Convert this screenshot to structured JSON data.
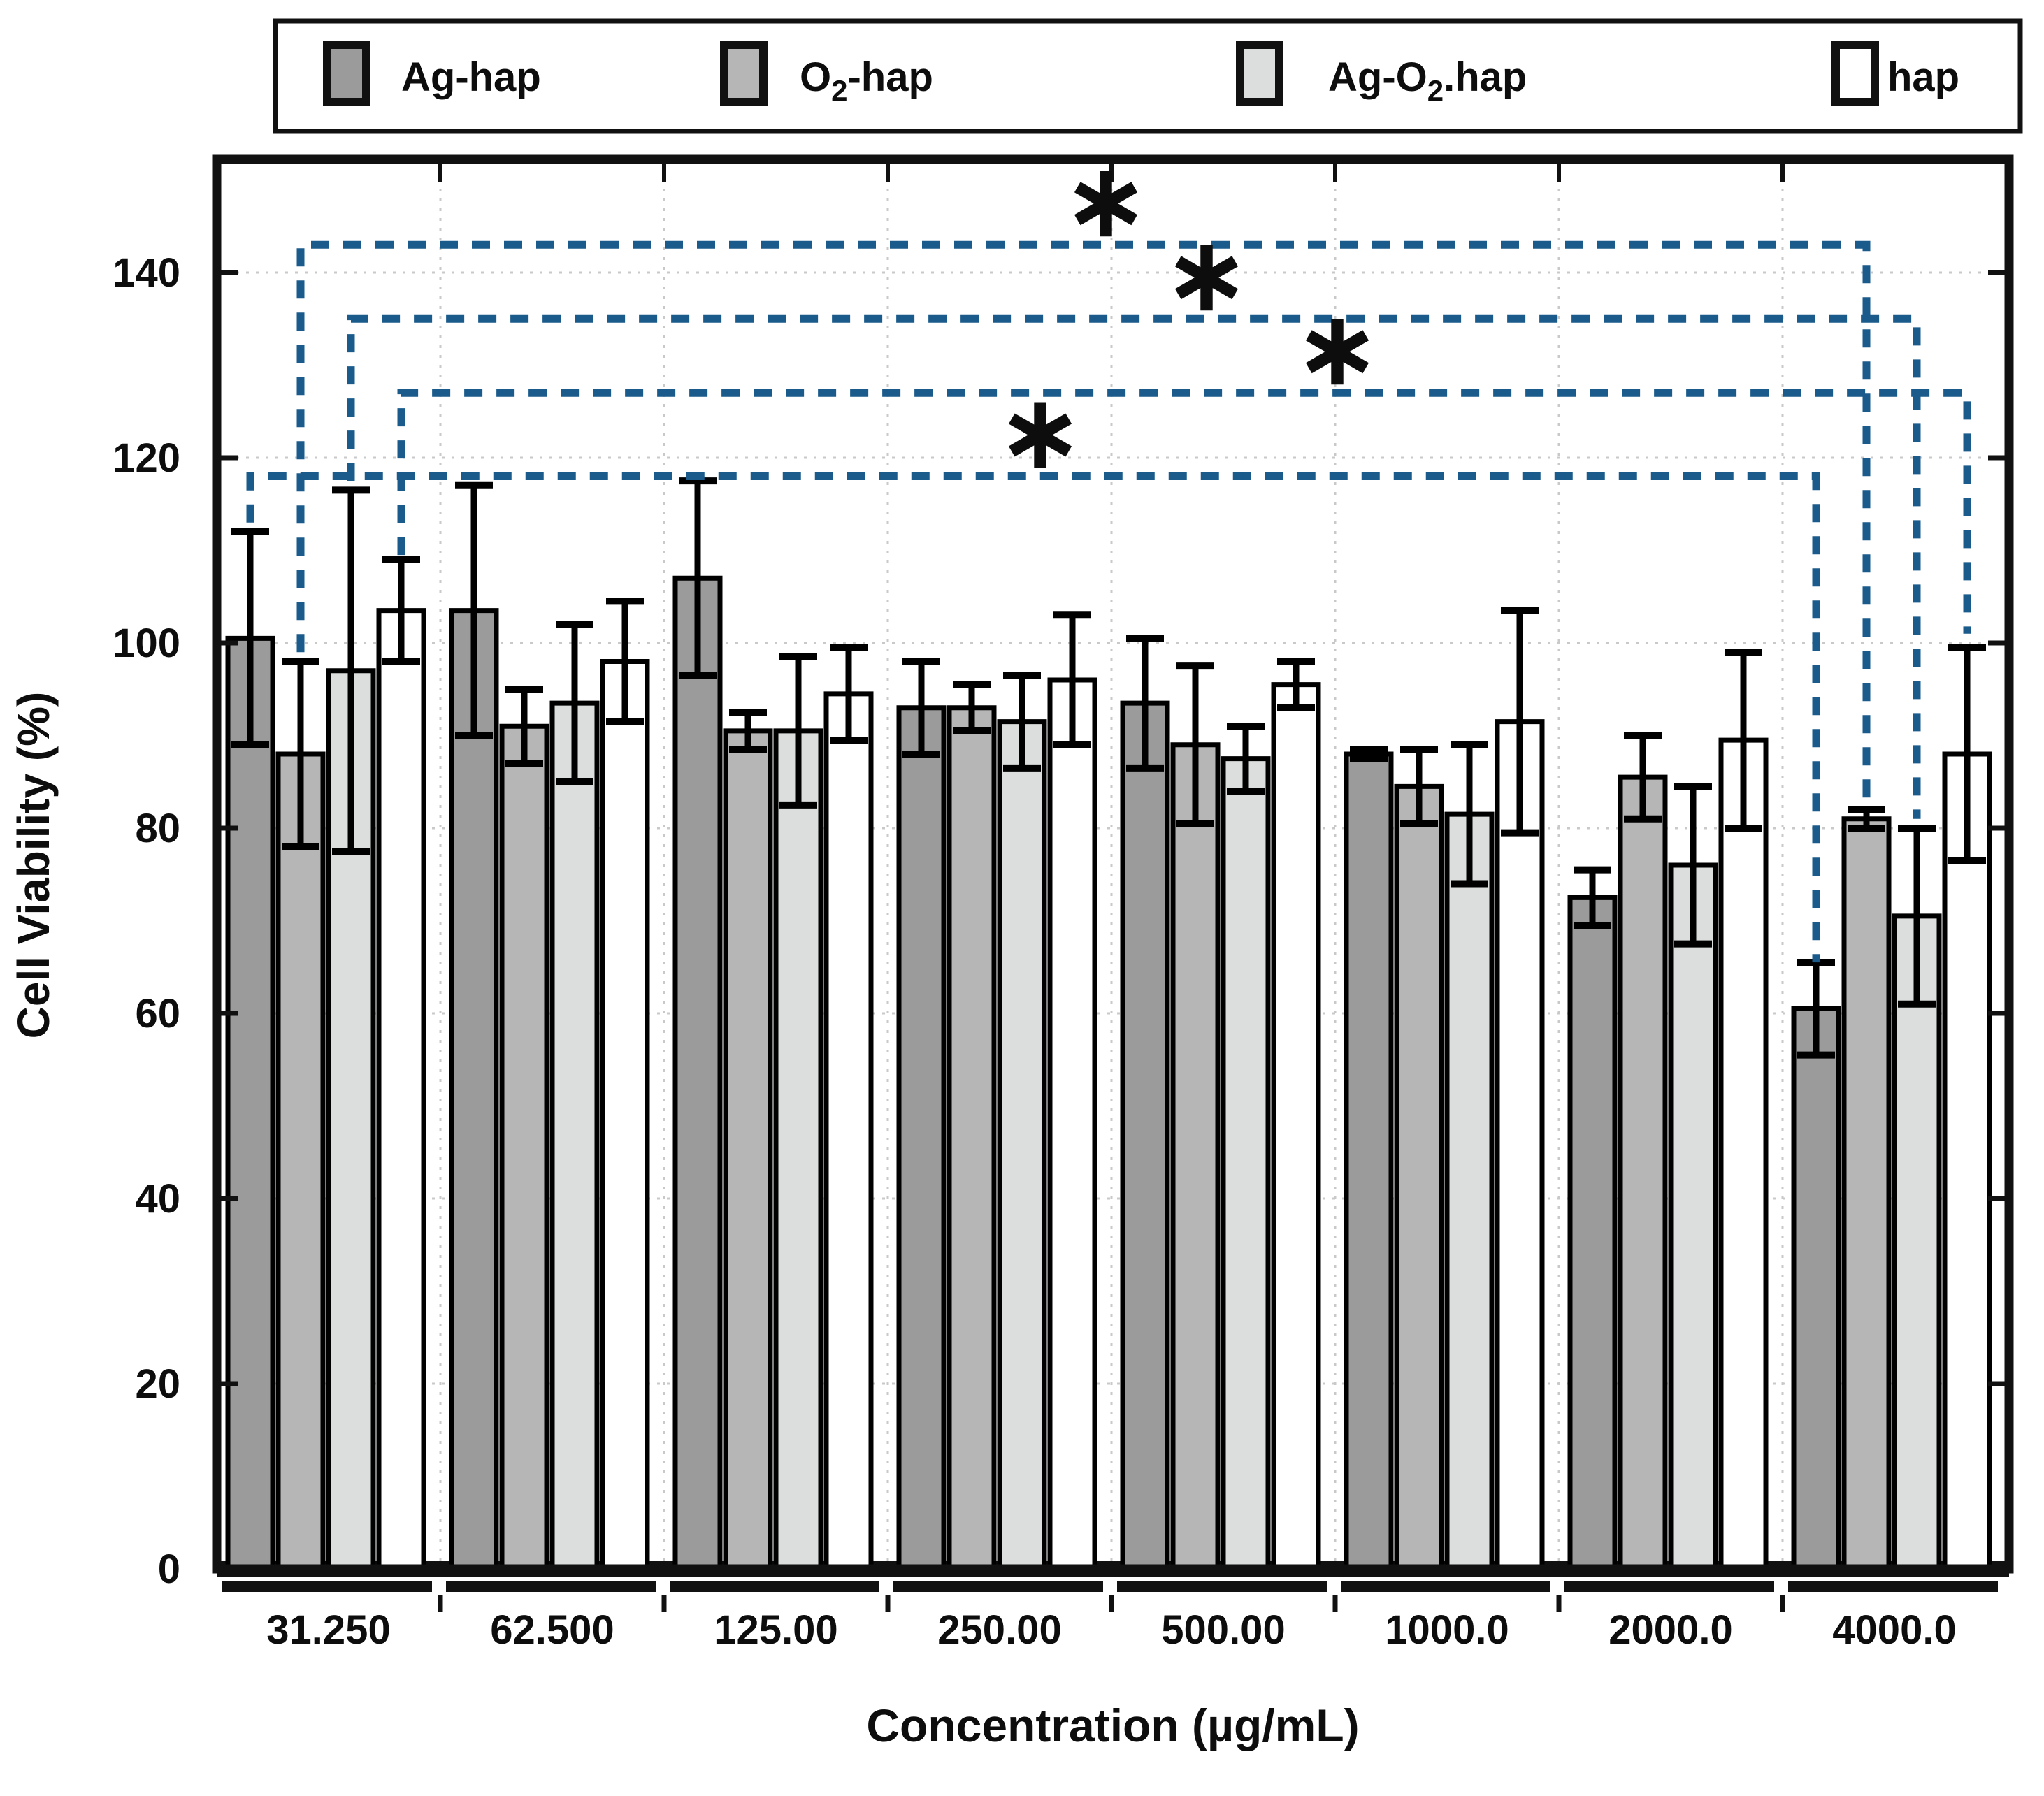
{
  "colors": {
    "bar_border": "#000000",
    "frame": "#111111",
    "grid": "#c9c9c9",
    "bracket_blue": "#1a5b8c",
    "text": "#0d0d0d",
    "background": "#ffffff"
  },
  "legend": {
    "items": [
      {
        "name": "Ag-hap",
        "color": "#9b9b9b",
        "parts": [
          {
            "t": "Ag-hap"
          }
        ]
      },
      {
        "name": "O2-hap",
        "color": "#b6b6b6",
        "parts": [
          {
            "t": "O"
          },
          {
            "t": "2",
            "sub": true
          },
          {
            "t": "-hap"
          }
        ]
      },
      {
        "name": "Ag-O2.hap",
        "color": "#dcdede",
        "parts": [
          {
            "t": "Ag-O"
          },
          {
            "t": "2",
            "sub": true
          },
          {
            "t": ".hap"
          }
        ]
      },
      {
        "name": "hap",
        "color": "#ffffff",
        "parts": [
          {
            "t": "hap"
          }
        ]
      }
    ]
  },
  "chart_data": {
    "type": "bar",
    "title": "",
    "xlabel": "Concentration (µg/mL)",
    "ylabel": "Cell Viability (%)",
    "ylim": [
      0,
      152
    ],
    "yticks": [
      0,
      20,
      40,
      60,
      80,
      100,
      120,
      140
    ],
    "grid": "dotted, every 20 units horizontal; vertical at group boundaries",
    "legend_position": "top, outside plot, horizontal box",
    "categories": [
      "31.250",
      "62.500",
      "125.00",
      "250.00",
      "500.00",
      "1000.0",
      "2000.0",
      "4000.0"
    ],
    "series": [
      {
        "name": "Ag-hap",
        "color": "#9b9b9b",
        "values": [
          100.5,
          103.5,
          107.0,
          93.0,
          93.5,
          88.0,
          72.5,
          60.5
        ],
        "errors": [
          11.5,
          13.5,
          10.5,
          5.0,
          7.0,
          0.5,
          3.0,
          5.0
        ]
      },
      {
        "name": "O2-hap",
        "color": "#b6b6b6",
        "values": [
          88.0,
          91.0,
          90.5,
          93.0,
          89.0,
          84.5,
          85.5,
          81.0
        ],
        "errors": [
          10.0,
          4.0,
          2.0,
          2.5,
          8.5,
          4.0,
          4.5,
          1.0
        ]
      },
      {
        "name": "Ag-O2.hap",
        "color": "#dcdede",
        "values": [
          97.0,
          93.5,
          90.5,
          91.5,
          87.5,
          81.5,
          76.0,
          70.5
        ],
        "errors": [
          19.5,
          8.5,
          8.0,
          5.0,
          3.5,
          7.5,
          8.5,
          9.5
        ]
      },
      {
        "name": "hap",
        "color": "#ffffff",
        "values": [
          103.5,
          98.0,
          94.5,
          96.0,
          95.5,
          91.5,
          89.5,
          88.0
        ],
        "errors": [
          5.5,
          6.5,
          5.0,
          7.0,
          2.5,
          12.0,
          9.5,
          11.5
        ]
      }
    ],
    "significance": [
      {
        "symbol": "∗",
        "series": "Ag-hap",
        "from": "31.250",
        "to": "4000.0",
        "level": 118,
        "left_end": 113.0,
        "right_end": 65.5,
        "star_x": 1488
      },
      {
        "symbol": "∗",
        "series": "O2-hap",
        "from": "31.250",
        "to": "4000.0",
        "level": 143,
        "left_end": 99.0,
        "right_end": 83.0,
        "star_x": 1582
      },
      {
        "symbol": "∗",
        "series": "Ag-O2.hap",
        "from": "31.250",
        "to": "4000.0",
        "level": 135,
        "left_end": 117.5,
        "right_end": 81.0,
        "star_x": 1726
      },
      {
        "symbol": "∗",
        "series": "hap",
        "from": "31.250",
        "to": "4000.0",
        "level": 127,
        "left_end": 109.5,
        "right_end": 101.0,
        "star_x": 1913
      }
    ]
  }
}
